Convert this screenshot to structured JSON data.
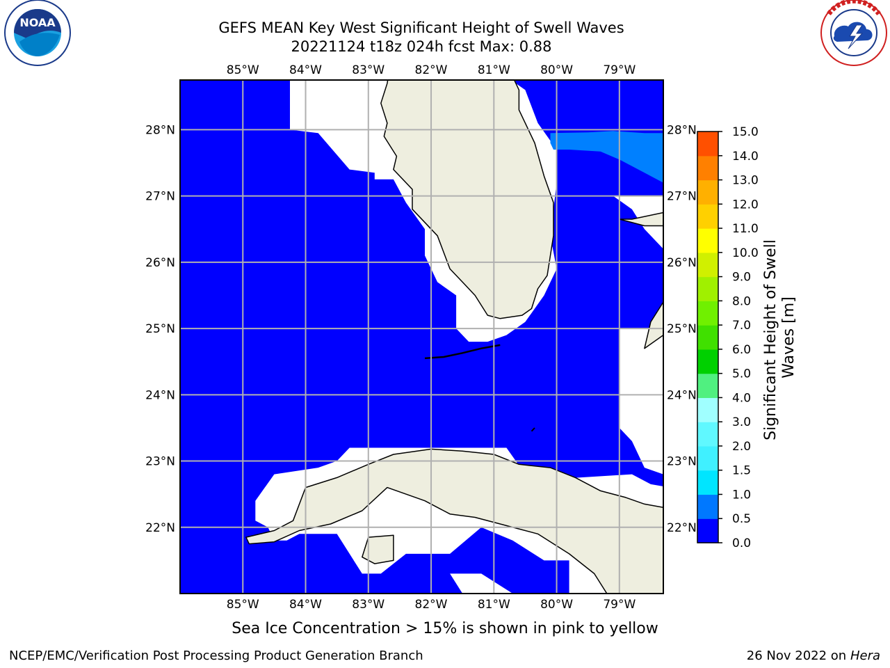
{
  "title": {
    "line1": "GEFS MEAN Key West Significant Height of Swell Waves",
    "line2": "20221124 t18z 024h fcst   Max: 0.88"
  },
  "map": {
    "lon_range": [
      -86,
      -78.3
    ],
    "lat_range": [
      21,
      28.75
    ],
    "lon_ticks": [
      "85°W",
      "84°W",
      "83°W",
      "82°W",
      "81°W",
      "80°W",
      "79°W"
    ],
    "lat_ticks": [
      "28°N",
      "27°N",
      "26°N",
      "25°N",
      "24°N",
      "23°N",
      "22°N"
    ],
    "colors": {
      "water": "#0000ff",
      "swell_05_1": "#0080ff",
      "land": "#eeeedf",
      "grid": "#b0b0b0",
      "no_data": "#ffffff"
    }
  },
  "colorbar": {
    "label": "Significant Height of Swell Waves [m]",
    "label_line1": "Significant Height of Swell",
    "label_line2": "Waves [m]",
    "ticks": [
      "0.0",
      "0.5",
      "1.0",
      "1.5",
      "2.0",
      "3.0",
      "4.0",
      "5.0",
      "6.0",
      "7.0",
      "8.0",
      "9.0",
      "10.0",
      "11.0",
      "12.0",
      "13.0",
      "14.0",
      "15.0"
    ],
    "colors": [
      "#0000ff",
      "#0078ff",
      "#00e5ff",
      "#40f0ff",
      "#60f8ff",
      "#a0ffff",
      "#50f080",
      "#00d000",
      "#40e000",
      "#70f000",
      "#a0f000",
      "#d0f000",
      "#ffff00",
      "#ffd000",
      "#ffb000",
      "#ff8000",
      "#ff5000",
      "#ff2000",
      "#ff0000"
    ]
  },
  "logos": {
    "noaa": {
      "text": "NOAA",
      "ring": "NATIONAL OCEANIC AND ATMOSPHERIC ADMINISTRATION · U.S. DEPARTMENT OF COMMERCE"
    },
    "nws": {
      "ring": "NATIONAL WEATHER SERVICE"
    }
  },
  "footer": {
    "note": "Sea Ice Concentration > 15% is shown in pink to yellow",
    "credit": "NCEP/EMC/Verification Post Processing Product Generation Branch",
    "date": "26 Nov 2022 on",
    "host": "Hera"
  }
}
